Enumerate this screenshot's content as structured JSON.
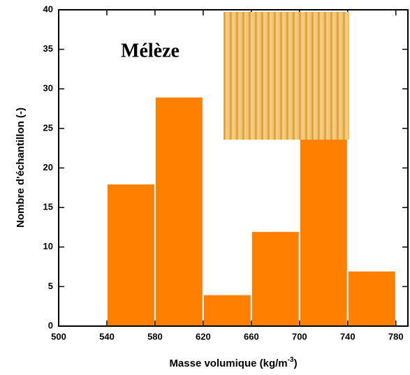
{
  "chart_data": {
    "type": "histogram",
    "annotation": "Mélèze",
    "xlabel": {
      "text": "Masse volumique (kg/m",
      "sup": "-3",
      "end": ")"
    },
    "ylabel": "Nombre d'échantillon (-)",
    "bins": [
      540,
      580,
      620,
      660,
      700,
      740,
      780
    ],
    "values": [
      18,
      29,
      4,
      12,
      24,
      7
    ],
    "color": "#ff8000",
    "xlim": [
      500,
      790
    ],
    "xticks": [
      500,
      540,
      580,
      620,
      660,
      700,
      740,
      780
    ],
    "ylim": [
      0,
      40
    ],
    "yticks": [
      0,
      5,
      10,
      15,
      20,
      25,
      30,
      35,
      40
    ]
  }
}
